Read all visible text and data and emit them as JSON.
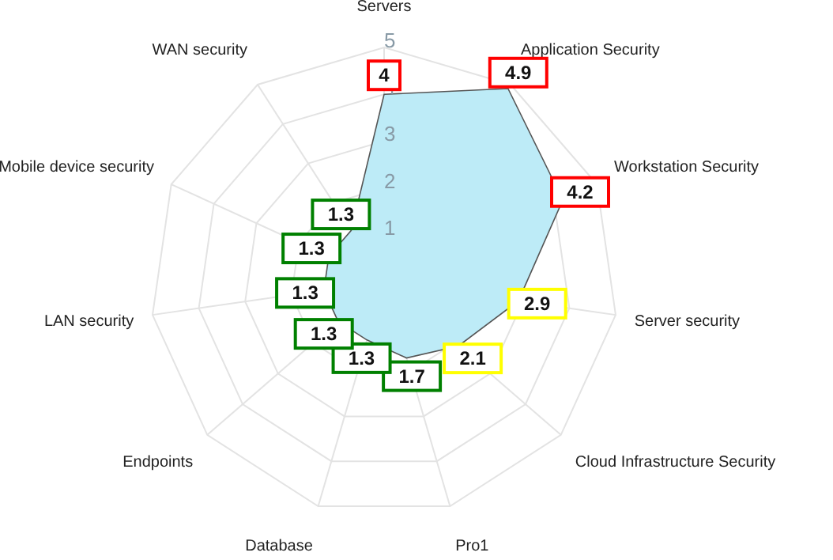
{
  "chart_data": {
    "type": "radar",
    "categories": [
      "Servers",
      "Application Security",
      "Workstation Security",
      "Server security",
      "Cloud Infrastructure Security",
      "Pro1",
      "Database",
      "Endpoints",
      "LAN security",
      "Mobile device security",
      "WAN security"
    ],
    "series": [
      {
        "color": "#bdebf7",
        "values": [
          4,
          4.9,
          4.2,
          2.9,
          2.1,
          1.7,
          1.3,
          1.3,
          1.3,
          1.3,
          1.3
        ],
        "colors": [
          "#ff0000",
          "#ff0000",
          "#ff0000",
          "#ffff00",
          "#ffff00",
          "#008000",
          "#008000",
          "#008000",
          "#008000",
          "#008000",
          "#008000"
        ]
      }
    ],
    "ylim": [
      0,
      5
    ],
    "yticks": [
      1,
      2,
      3,
      4,
      5
    ],
    "grid": true,
    "data_labels": true
  }
}
